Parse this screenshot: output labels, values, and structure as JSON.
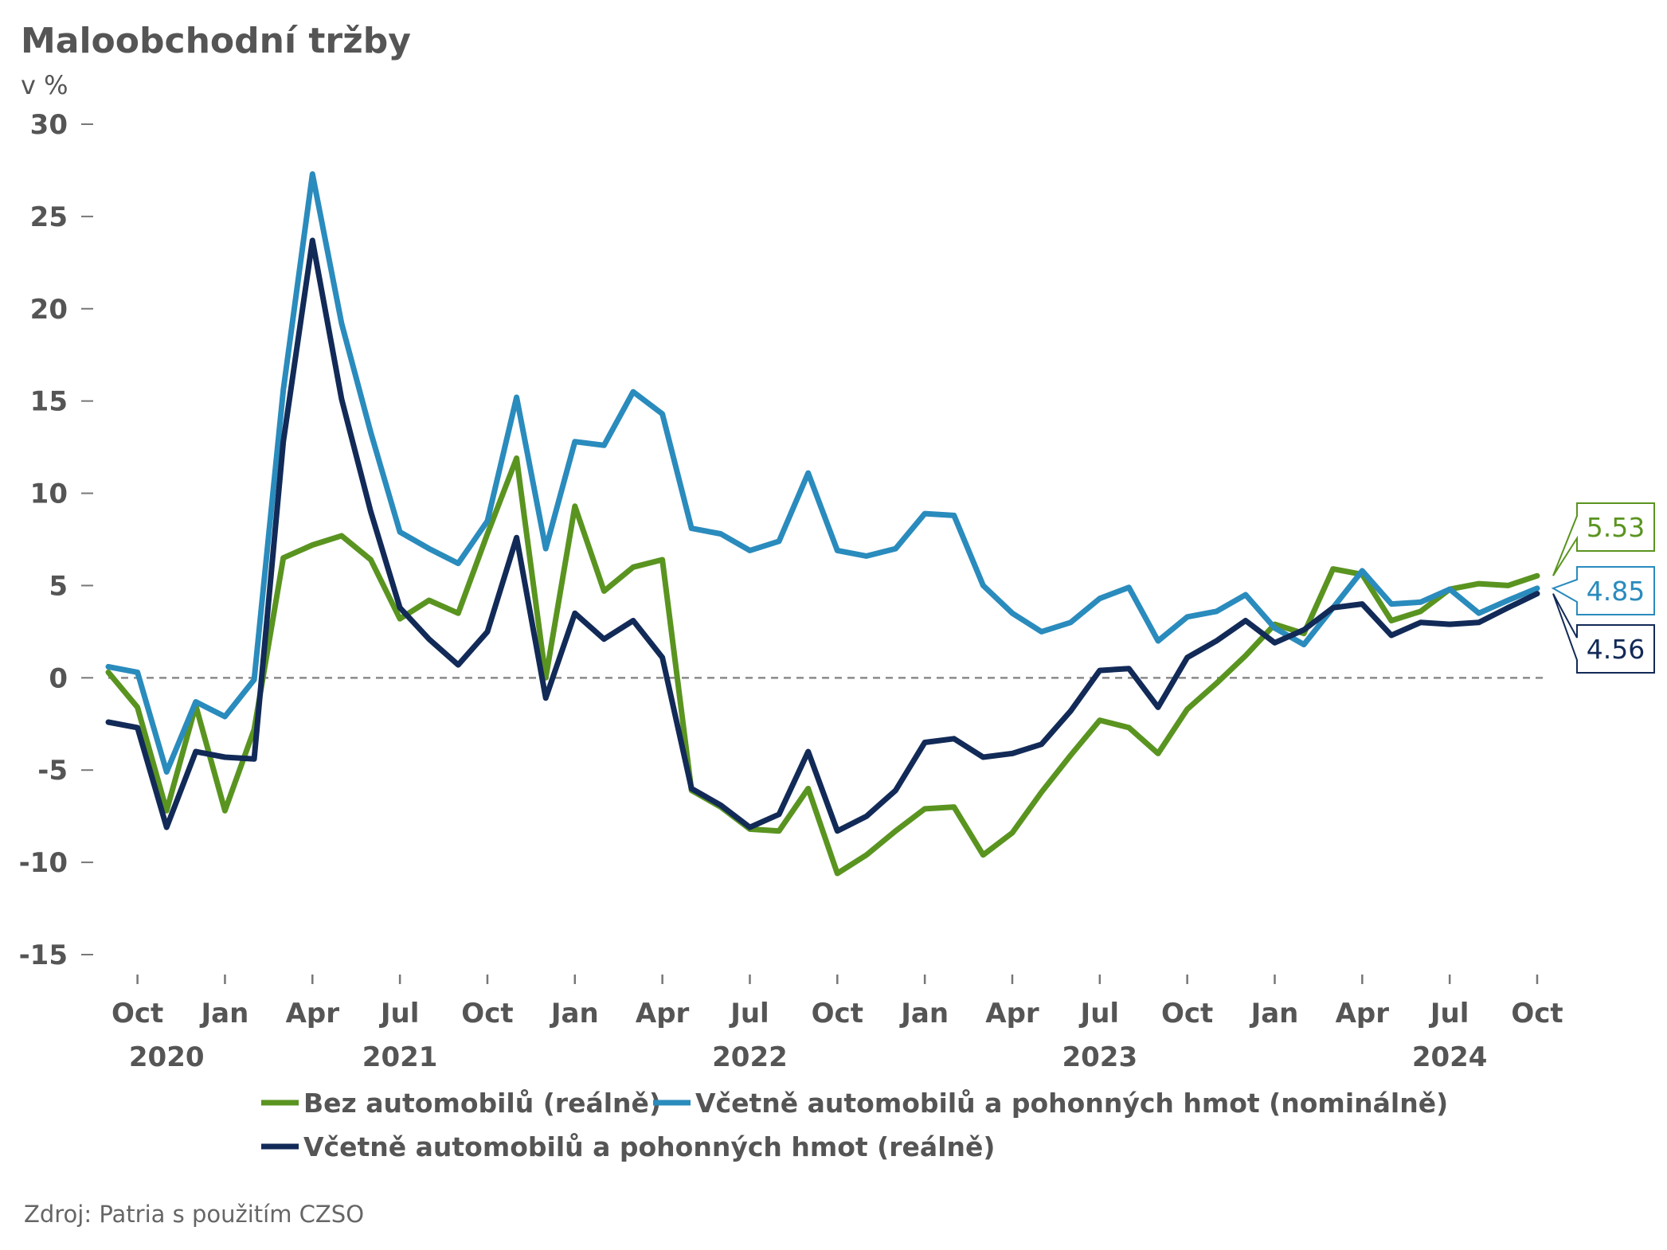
{
  "colors": {
    "green": "#5a9420",
    "light_blue": "#2a8bbd",
    "dark_navy": "#122a57",
    "text": "#555555",
    "zero_line": "#8a8a8a"
  },
  "chart_data": {
    "type": "line",
    "title": "Maloobchodní tržby",
    "unit_label": "v %",
    "ylim": [
      -15,
      30
    ],
    "yticks": [
      30,
      25,
      20,
      15,
      10,
      5,
      0,
      -5,
      -10,
      -15
    ],
    "ytick_labels": [
      "30",
      "25",
      "20",
      "15",
      "10",
      "5",
      "0",
      "-5",
      "-10",
      "-15"
    ],
    "zero_line": "dashed",
    "grid": false,
    "x_start": "2020-09",
    "x_end": "2024-10",
    "xticks": [
      {
        "date": "2020-10",
        "label": "Oct"
      },
      {
        "date": "2021-01",
        "label": "Jan"
      },
      {
        "date": "2021-04",
        "label": "Apr"
      },
      {
        "date": "2021-07",
        "label": "Jul"
      },
      {
        "date": "2021-10",
        "label": "Oct"
      },
      {
        "date": "2022-01",
        "label": "Jan"
      },
      {
        "date": "2022-04",
        "label": "Apr"
      },
      {
        "date": "2022-07",
        "label": "Jul"
      },
      {
        "date": "2022-10",
        "label": "Oct"
      },
      {
        "date": "2023-01",
        "label": "Jan"
      },
      {
        "date": "2023-04",
        "label": "Apr"
      },
      {
        "date": "2023-07",
        "label": "Jul"
      },
      {
        "date": "2023-10",
        "label": "Oct"
      },
      {
        "date": "2024-01",
        "label": "Jan"
      },
      {
        "date": "2024-04",
        "label": "Apr"
      },
      {
        "date": "2024-07",
        "label": "Jul"
      },
      {
        "date": "2024-10",
        "label": "Oct"
      }
    ],
    "year_labels": [
      {
        "date": "2020-11",
        "label": "2020"
      },
      {
        "date": "2021-07",
        "label": "2021"
      },
      {
        "date": "2022-07",
        "label": "2022"
      },
      {
        "date": "2023-07",
        "label": "2023"
      },
      {
        "date": "2024-07",
        "label": "2024"
      }
    ],
    "x": [
      "2020-09",
      "2020-10",
      "2020-11",
      "2020-12",
      "2021-01",
      "2021-02",
      "2021-03",
      "2021-04",
      "2021-05",
      "2021-06",
      "2021-07",
      "2021-08",
      "2021-09",
      "2021-10",
      "2021-11",
      "2021-12",
      "2022-01",
      "2022-02",
      "2022-03",
      "2022-04",
      "2022-05",
      "2022-06",
      "2022-07",
      "2022-08",
      "2022-09",
      "2022-10",
      "2022-11",
      "2022-12",
      "2023-01",
      "2023-02",
      "2023-03",
      "2023-04",
      "2023-05",
      "2023-06",
      "2023-07",
      "2023-08",
      "2023-09",
      "2023-10",
      "2023-11",
      "2023-12",
      "2024-01",
      "2024-02",
      "2024-03",
      "2024-04",
      "2024-05",
      "2024-06",
      "2024-07",
      "2024-08",
      "2024-09",
      "2024-10"
    ],
    "series": [
      {
        "name": "Bez automobilů (reálně)",
        "color": "#5a9420",
        "end_label": "5.53",
        "values": [
          0.3,
          -1.6,
          -7.2,
          -1.5,
          -7.2,
          -2.8,
          6.5,
          7.2,
          7.7,
          6.4,
          3.2,
          4.2,
          3.5,
          7.8,
          11.9,
          0.0,
          9.3,
          4.7,
          6.0,
          6.4,
          -6.1,
          -7.0,
          -8.2,
          -8.3,
          -6.0,
          -10.6,
          -9.6,
          -8.3,
          -7.1,
          -7.0,
          -9.6,
          -8.4,
          -6.2,
          -4.2,
          -2.3,
          -2.7,
          -4.1,
          -1.7,
          -0.3,
          1.2,
          2.9,
          2.4,
          5.9,
          5.6,
          3.1,
          3.6,
          4.8,
          5.1,
          5.0,
          5.53
        ]
      },
      {
        "name": "Včetně automobilů a pohonných hmot (nominálně)",
        "color": "#2a8bbd",
        "end_label": "4.85",
        "values": [
          0.6,
          0.3,
          -5.1,
          -1.3,
          -2.1,
          -0.1,
          15.6,
          27.3,
          19.2,
          13.3,
          7.9,
          7.0,
          6.2,
          8.5,
          15.2,
          7.0,
          12.8,
          12.6,
          15.5,
          14.3,
          8.1,
          7.8,
          6.9,
          7.4,
          11.1,
          6.9,
          6.6,
          7.0,
          8.9,
          8.8,
          5.0,
          3.5,
          2.5,
          3.0,
          4.3,
          4.9,
          2.0,
          3.3,
          3.6,
          4.5,
          2.7,
          1.8,
          3.8,
          5.8,
          4.0,
          4.1,
          4.8,
          3.5,
          4.2,
          4.85
        ]
      },
      {
        "name": "Včetně automobilů a pohonných hmot (reálně)",
        "color": "#122a57",
        "end_label": "4.56",
        "values": [
          -2.4,
          -2.7,
          -8.1,
          -4.0,
          -4.3,
          -4.4,
          12.8,
          23.7,
          15.1,
          9.0,
          3.8,
          2.1,
          0.7,
          2.5,
          7.6,
          -1.1,
          3.5,
          2.1,
          3.1,
          1.1,
          -6.0,
          -6.9,
          -8.1,
          -7.4,
          -4.0,
          -8.3,
          -7.5,
          -6.1,
          -3.5,
          -3.3,
          -4.3,
          -4.1,
          -3.6,
          -1.8,
          0.4,
          0.5,
          -1.6,
          1.1,
          2.0,
          3.1,
          1.9,
          2.6,
          3.8,
          4.0,
          2.3,
          3.0,
          2.9,
          3.0,
          3.8,
          4.56
        ]
      }
    ],
    "legend": {
      "position": "bottom",
      "items": [
        "Bez automobilů (reálně)",
        "Včetně automobilů a pohonných hmot (nominálně)",
        "Včetně automobilů a pohonných hmot (reálně)"
      ]
    },
    "source": "Zdroj: Patria s použitím CZSO"
  }
}
